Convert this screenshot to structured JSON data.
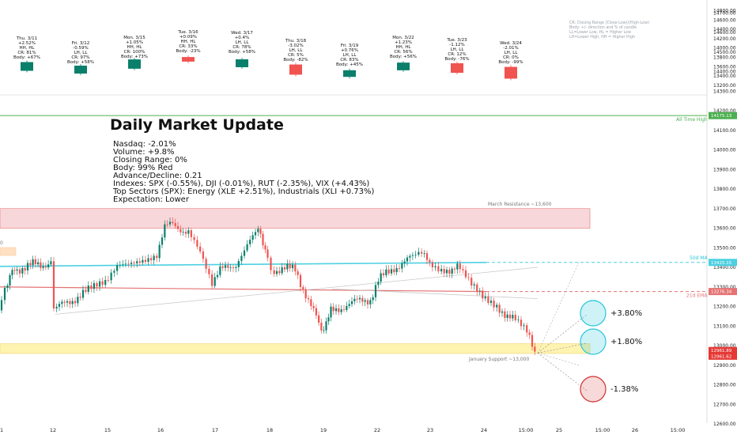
{
  "chart_data": {
    "type": "candlestick",
    "title": "Daily Market Update",
    "summary_lines": [
      "Nasdaq: -2.01%",
      "Volume: +9.8%",
      "Closing Range: 0%",
      "Body: 99% Red",
      "Advance/Decline: 0.21",
      "Indexes: SPX (-0.55%), DJI (-0.01%), RUT (-2.35%), VIX (+4.43%)",
      "Top Sectors (SPX): Energy (XLE +2.51%), Industrials (XLI +0.73%)",
      "Expectation: Lower"
    ],
    "legend_notes": [
      "CR: Closing Range (Close-Low)/(High-Low)",
      "Body: +/- direction and % of candle",
      "LL=Lower Low, HL = Higher Low",
      "LH=Lower High, HH = Higher High"
    ],
    "daily_cards": [
      {
        "date": "Thu. 3/11",
        "chg": "+2.52%",
        "hl": "HH, HL",
        "cr": "CR: 81%",
        "body": "Body: +67%",
        "dir": "up",
        "body_frac": 0.67
      },
      {
        "date": "Fri. 3/12",
        "chg": "-0.59%",
        "hl": "LH, LL",
        "cr": "CR: 97%",
        "body": "Body: +58%",
        "dir": "up",
        "body_frac": 0.58
      },
      {
        "date": "Mon. 3/15",
        "chg": "+1.05%",
        "hl": "HH, HL",
        "cr": "CR: 100%",
        "body": "Body: +73%",
        "dir": "up",
        "body_frac": 0.73
      },
      {
        "date": "Tue. 3/16",
        "chg": "+0.09%",
        "hl": "HH, HL",
        "cr": "CR: 33%",
        "body": "Body: -23%",
        "dir": "down",
        "body_frac": 0.23
      },
      {
        "date": "Wed. 3/17",
        "chg": "+0.4%",
        "hl": "LH, LL",
        "cr": "CR: 78%",
        "body": "Body: +58%",
        "dir": "up",
        "body_frac": 0.58
      },
      {
        "date": "Thu. 3/18",
        "chg": "-3.02%",
        "hl": "LH, LL",
        "cr": "CR: 5%",
        "body": "Body: -82%",
        "dir": "down",
        "body_frac": 0.82
      },
      {
        "date": "Fri. 3/19",
        "chg": "+0.76%",
        "hl": "LH, LL",
        "cr": "CR: 83%",
        "body": "Body: +45%",
        "dir": "up",
        "body_frac": 0.45
      },
      {
        "date": "Mon. 3/22",
        "chg": "+1.23%",
        "hl": "HH, HL",
        "cr": "CR: 56%",
        "body": "Body: +56%",
        "dir": "up",
        "body_frac": 0.56
      },
      {
        "date": "Tue. 3/23",
        "chg": "-1.12%",
        "hl": "LH, LL",
        "cr": "CR: 12%",
        "body": "Body: -76%",
        "dir": "down",
        "body_frac": 0.76
      },
      {
        "date": "Wed. 3/24",
        "chg": "-2.01%",
        "hl": "LH, LL",
        "cr": "CR: 0%",
        "body": "Body: -99%",
        "dir": "down",
        "body_frac": 0.99
      }
    ],
    "y_ticks": [
      12600,
      12700,
      12800,
      12900,
      13000,
      13100,
      13200,
      13300,
      13400,
      13500,
      13600,
      13700,
      13800,
      13900,
      14000,
      14100,
      14200,
      14300,
      14400,
      14500,
      14600,
      14700,
      14800,
      14900,
      15000,
      15100,
      15200
    ],
    "upper_y_ticks": [
      13200,
      13400,
      13600,
      13800,
      14000,
      14200,
      14400,
      14600,
      14800
    ],
    "x_ticks": [
      "1",
      "12",
      "15",
      "16",
      "17",
      "18",
      "19",
      "22",
      "23",
      "24",
      "15:00",
      "25",
      "15:00",
      "26",
      "15:00"
    ],
    "levels": [
      {
        "name": "All Time High",
        "value": 14175.13,
        "color": "#4caf50",
        "tag": "14175.13"
      },
      {
        "name": "50d MA",
        "value": 13425.15,
        "color": "#4dd0e1",
        "tag": "13425.15"
      },
      {
        "name": "21d EMA",
        "value": 13276.34,
        "color": "#e57373",
        "tag": "13276.34"
      }
    ],
    "price_tags": [
      "12961.89",
      "12961.62"
    ],
    "zones": [
      {
        "name": "March Resistance ~13,600",
        "low": 13600,
        "high": 13700,
        "color": "#f8d7da"
      },
      {
        "name": "January Support ~13,000",
        "low": 12960,
        "high": 13010,
        "color": "#fff3b0"
      }
    ],
    "left_marker": "0",
    "projections": [
      {
        "label": "+3.80%",
        "target": 13455,
        "color": "#26c6da"
      },
      {
        "label": "+1.80%",
        "target": 13195,
        "color": "#26c6da"
      },
      {
        "label": "-1.38%",
        "target": 12782,
        "color": "#d32f2f"
      }
    ],
    "colors": {
      "up": "#0a7f6b",
      "down": "#f05350"
    }
  }
}
